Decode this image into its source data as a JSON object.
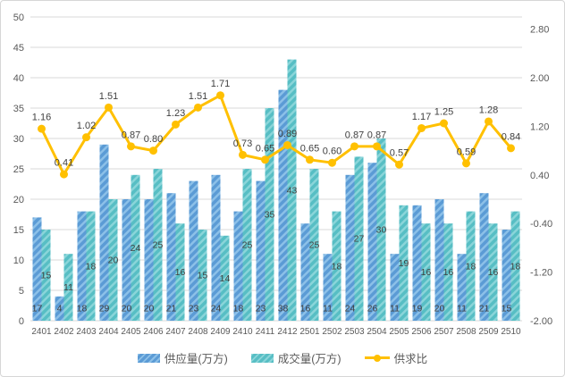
{
  "chart_data": {
    "type": "bar",
    "title": "",
    "categories": [
      "2401",
      "2402",
      "2403",
      "2404",
      "2405",
      "2406",
      "2407",
      "2408",
      "2409",
      "2410",
      "2411",
      "2412",
      "2501",
      "2502",
      "2503",
      "2504",
      "2505",
      "2506",
      "2507",
      "2508",
      "2509",
      "2510"
    ],
    "series": [
      {
        "name": "供应量(万方)",
        "type": "bar",
        "axis": "left",
        "color": "#5b9bd5",
        "stripe_color": "#8cc0e8",
        "values": [
          17,
          4,
          18,
          29,
          20,
          20,
          21,
          23,
          24,
          18,
          23,
          38,
          16,
          11,
          24,
          26,
          11,
          19,
          20,
          11,
          21,
          15
        ]
      },
      {
        "name": "成交量(万方)",
        "type": "bar",
        "axis": "left",
        "color": "#57bec4",
        "stripe_color": "#8ad5d9",
        "values": [
          15,
          11,
          18,
          20,
          24,
          25,
          16,
          15,
          14,
          25,
          35,
          43,
          25,
          18,
          27,
          30,
          19,
          16,
          16,
          18,
          16,
          18
        ]
      },
      {
        "name": "供求比",
        "type": "line",
        "axis": "right",
        "color": "#ffc000",
        "values": [
          1.16,
          0.41,
          1.02,
          1.51,
          0.87,
          0.8,
          1.23,
          1.51,
          1.71,
          0.73,
          0.65,
          0.89,
          0.65,
          0.6,
          0.87,
          0.87,
          0.57,
          1.17,
          1.25,
          0.59,
          1.28,
          0.84
        ]
      }
    ],
    "left_axis": {
      "min": 0,
      "max": 50,
      "step": 5,
      "labels": [
        "0",
        "5",
        "10",
        "15",
        "20",
        "25",
        "30",
        "35",
        "40",
        "45",
        "50"
      ]
    },
    "right_axis": {
      "min": -2.0,
      "max": 3.0,
      "labels": [
        "2.80",
        "2.00",
        "1.20",
        "0.40",
        "-0.40",
        "-1.20",
        "-2.00"
      ]
    },
    "grid": true,
    "legend_position": "bottom",
    "gridline_color": "#d9d9d9",
    "label_color": "#404040",
    "axis_text_color": "#595959"
  }
}
